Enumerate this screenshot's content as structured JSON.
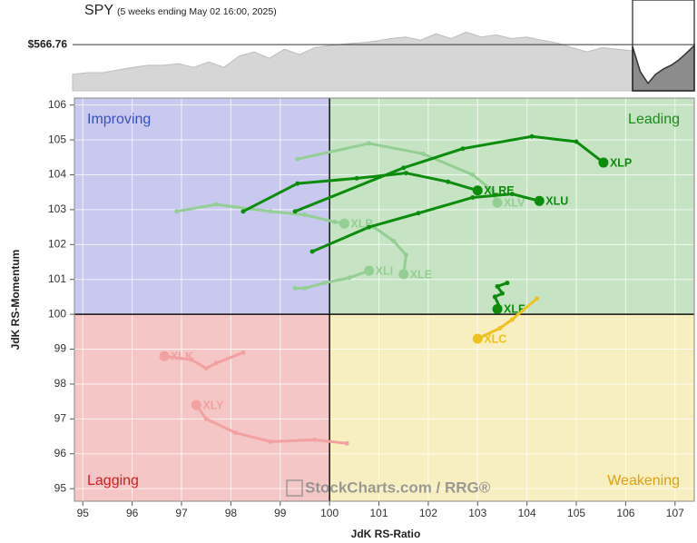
{
  "chart_data": [
    {
      "type": "area",
      "title": "SPY",
      "subtitle": "(5 weeks ending May 02 16:00, 2025)",
      "last_value": 566.76,
      "last_value_label": "$566.76",
      "ylim": [
        480,
        647
      ],
      "series": [
        {
          "color": "#d6d6d6",
          "values": [
            511,
            514,
            514,
            519,
            524,
            528,
            528,
            531,
            524,
            534,
            524,
            545,
            553,
            541,
            558,
            548,
            561,
            565,
            568,
            570,
            573,
            578,
            581,
            575,
            587,
            578,
            590,
            581,
            585,
            578,
            581,
            575,
            570,
            561,
            553,
            561,
            558,
            555
          ]
        },
        {
          "color": "#8c8c8c",
          "values": [
            563,
            516,
            494,
            511,
            521,
            528,
            538,
            551,
            565
          ]
        }
      ]
    },
    {
      "type": "rrg",
      "x_label": "JdK RS-Ratio",
      "y_label": "JdK RS-Momentum",
      "xlim": [
        94.83,
        107.39
      ],
      "ylim": [
        94.64,
        106.2
      ],
      "xticks": [
        95,
        96,
        97,
        98,
        99,
        100,
        101,
        102,
        103,
        104,
        105,
        106,
        107
      ],
      "yticks": [
        95,
        96,
        97,
        98,
        99,
        100,
        101,
        102,
        103,
        104,
        105,
        106
      ],
      "grid": true,
      "center": {
        "x": 100,
        "y": 100
      },
      "quadrants": {
        "improving": "Improving",
        "leading": "Leading",
        "lagging": "Lagging",
        "weakening": "Weakening"
      },
      "watermark": "StockCharts.com / RRG®",
      "series": [
        {
          "name": "XLV",
          "color": "#93cf93",
          "x": [
            99.35,
            100.8,
            101.9,
            102.9,
            103.3,
            103.4
          ],
          "values": [
            104.45,
            104.9,
            104.6,
            104.0,
            103.55,
            103.2
          ]
        },
        {
          "name": "XLB",
          "color": "#93cf93",
          "x": [
            96.9,
            97.7,
            98.8,
            99.5,
            100.1,
            100.3
          ],
          "values": [
            102.95,
            103.15,
            102.95,
            102.85,
            102.65,
            102.6
          ]
        },
        {
          "name": "XLE",
          "color": "#93cf93",
          "x": [
            100.9,
            101.3,
            101.55,
            101.5
          ],
          "values": [
            102.5,
            102.1,
            101.7,
            101.15
          ]
        },
        {
          "name": "XLI",
          "color": "#93cf93",
          "x": [
            99.3,
            99.5,
            99.9,
            100.4,
            100.8
          ],
          "values": [
            100.75,
            100.75,
            100.9,
            101.05,
            101.25
          ]
        },
        {
          "name": "XLK",
          "color": "#f2a0a0",
          "x": [
            98.25,
            97.7,
            97.5,
            97.2,
            96.65
          ],
          "values": [
            98.9,
            98.6,
            98.45,
            98.7,
            98.8
          ]
        },
        {
          "name": "XLY",
          "color": "#f2a0a0",
          "x": [
            100.35,
            99.7,
            98.8,
            98.1,
            97.5,
            97.3
          ],
          "values": [
            96.3,
            96.4,
            96.35,
            96.6,
            97.0,
            97.4
          ]
        },
        {
          "name": "XLRE",
          "color": "#0b8c0b",
          "x": [
            98.25,
            99.35,
            100.55,
            101.55,
            102.4,
            103.0
          ],
          "values": [
            102.95,
            103.75,
            103.9,
            104.05,
            103.8,
            103.55
          ]
        },
        {
          "name": "XLP",
          "color": "#0b8c0b",
          "x": [
            99.3,
            101.5,
            102.7,
            104.1,
            105.0,
            105.55
          ],
          "values": [
            102.95,
            104.2,
            104.75,
            105.1,
            104.95,
            104.35
          ]
        },
        {
          "name": "XLU",
          "color": "#0b8c0b",
          "x": [
            99.65,
            100.8,
            101.8,
            102.9,
            103.7,
            104.25
          ],
          "values": [
            101.8,
            102.5,
            102.9,
            103.35,
            103.45,
            103.25
          ]
        },
        {
          "name": "XLF",
          "color": "#0b8c0b",
          "x": [
            103.6,
            103.4,
            103.5,
            103.35,
            103.45,
            103.4
          ],
          "values": [
            100.9,
            100.8,
            100.6,
            100.5,
            100.2,
            100.15
          ]
        },
        {
          "name": "XLC",
          "color": "#f0c020",
          "x": [
            104.2,
            103.7,
            103.45,
            103.0
          ],
          "values": [
            100.45,
            99.85,
            99.6,
            99.3
          ]
        }
      ]
    }
  ]
}
